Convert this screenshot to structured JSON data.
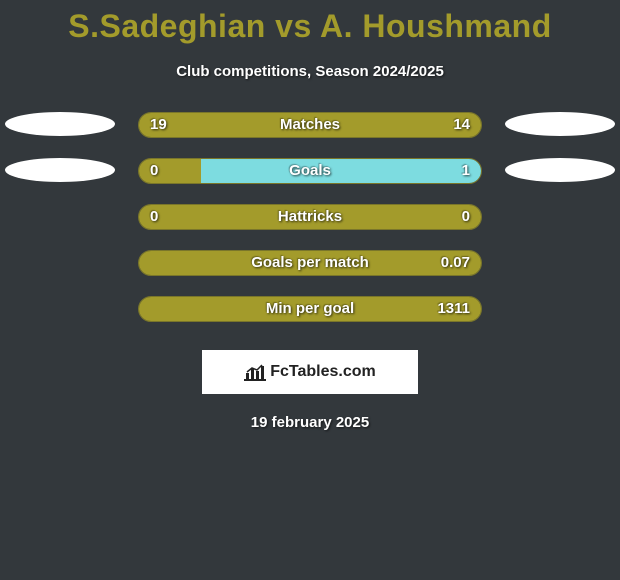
{
  "title": "S.Sadeghian vs A. Houshmand",
  "subtitle": "Club competitions, Season 2024/2025",
  "date": "19 february 2025",
  "colors": {
    "background": "#33383c",
    "accent_title": "#a39b2b",
    "bar_left": "#a39b2b",
    "bar_right": "#7ddce0",
    "bar_border": "#7a762a",
    "text": "#ffffff"
  },
  "brand": {
    "label": "FcTables.com"
  },
  "stats": [
    {
      "label": "Matches",
      "left_val": "19",
      "right_val": "14",
      "left_pct": 100,
      "right_pct": 0,
      "show_ellipses": true
    },
    {
      "label": "Goals",
      "left_val": "0",
      "right_val": "1",
      "left_pct": 18,
      "right_pct": 82,
      "show_ellipses": true
    },
    {
      "label": "Hattricks",
      "left_val": "0",
      "right_val": "0",
      "left_pct": 100,
      "right_pct": 0,
      "show_ellipses": false
    },
    {
      "label": "Goals per match",
      "left_val": "",
      "right_val": "0.07",
      "left_pct": 100,
      "right_pct": 0,
      "show_ellipses": false
    },
    {
      "label": "Min per goal",
      "left_val": "",
      "right_val": "1311",
      "left_pct": 100,
      "right_pct": 0,
      "show_ellipses": false
    }
  ]
}
